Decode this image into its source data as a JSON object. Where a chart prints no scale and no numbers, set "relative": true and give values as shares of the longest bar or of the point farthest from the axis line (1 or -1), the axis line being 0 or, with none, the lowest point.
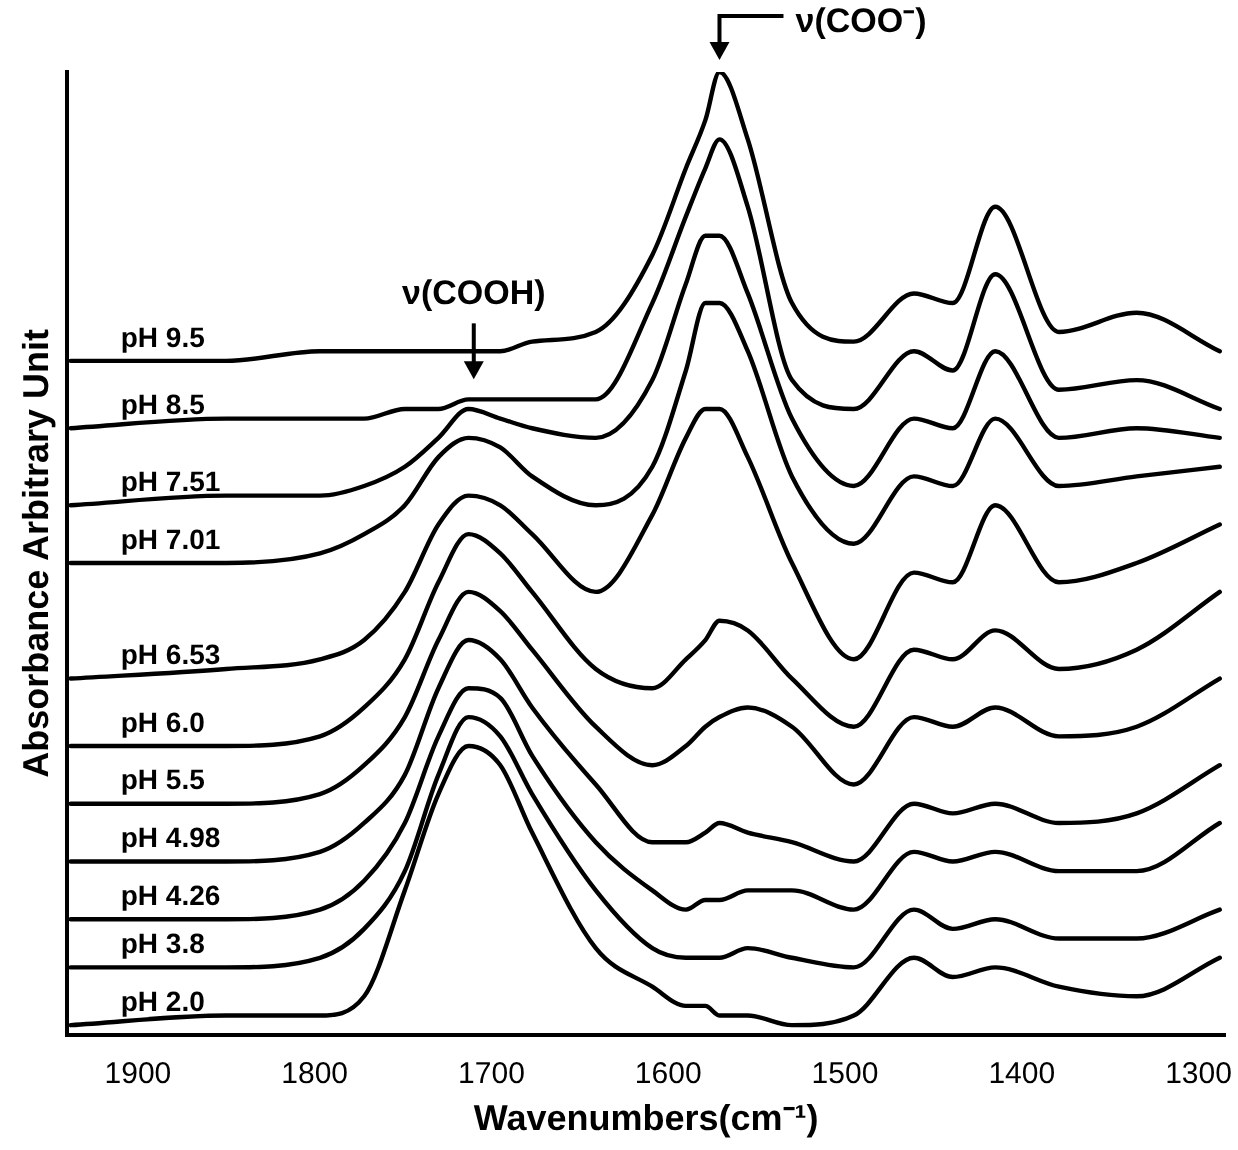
{
  "chart_data": {
    "type": "line",
    "relative": true,
    "xlabel": "Wavenumbers(cm⁻¹)",
    "ylabel": "Absorbance Arbitrary Unit",
    "x": [
      1938,
      1850,
      1797,
      1772,
      1749,
      1730,
      1713,
      1695,
      1677,
      1641,
      1609,
      1590,
      1579,
      1571,
      1555,
      1530,
      1495,
      1461,
      1439,
      1415,
      1379,
      1335,
      1288
    ],
    "xlim": [
      1940,
      1285
    ],
    "xticks": [
      1900,
      1800,
      1700,
      1600,
      1500,
      1400,
      1300
    ],
    "grid": false,
    "legend": false,
    "marker": "none",
    "line_style": "solid",
    "series": [
      {
        "name": "pH 9.5",
        "color": "#000000",
        "values": [
          0.7,
          0.7,
          0.71,
          0.71,
          0.71,
          0.71,
          0.71,
          0.71,
          0.72,
          0.73,
          0.81,
          0.9,
          0.95,
          1,
          0.93,
          0.76,
          0.72,
          0.77,
          0.76,
          0.86,
          0.73,
          0.75,
          0.71
        ]
      },
      {
        "name": "pH 8.5",
        "color": "#000000",
        "values": [
          0.63,
          0.64,
          0.64,
          0.64,
          0.65,
          0.65,
          0.66,
          0.66,
          0.66,
          0.66,
          0.76,
          0.85,
          0.9,
          0.93,
          0.86,
          0.68,
          0.65,
          0.71,
          0.69,
          0.79,
          0.67,
          0.68,
          0.65
        ]
      },
      {
        "name": "pH 7.51",
        "color": "#000000",
        "values": [
          0.55,
          0.56,
          0.56,
          0.57,
          0.59,
          0.62,
          0.65,
          0.64,
          0.63,
          0.62,
          0.68,
          0.78,
          0.83,
          0.83,
          0.77,
          0.64,
          0.57,
          0.64,
          0.63,
          0.71,
          0.62,
          0.63,
          0.62
        ]
      },
      {
        "name": "pH 7.01",
        "color": "#000000",
        "values": [
          0.49,
          0.49,
          0.5,
          0.52,
          0.55,
          0.6,
          0.62,
          0.61,
          0.58,
          0.55,
          0.59,
          0.69,
          0.76,
          0.76,
          0.71,
          0.58,
          0.51,
          0.58,
          0.57,
          0.64,
          0.57,
          0.58,
          0.59
        ]
      },
      {
        "name": "pH 6.53",
        "color": "#000000",
        "values": [
          0.37,
          0.38,
          0.39,
          0.41,
          0.46,
          0.53,
          0.56,
          0.55,
          0.52,
          0.46,
          0.54,
          0.62,
          0.65,
          0.65,
          0.6,
          0.49,
          0.39,
          0.48,
          0.47,
          0.55,
          0.47,
          0.49,
          0.53
        ]
      },
      {
        "name": "pH 6.0",
        "color": "#000000",
        "values": [
          0.3,
          0.3,
          0.31,
          0.34,
          0.39,
          0.47,
          0.52,
          0.5,
          0.46,
          0.38,
          0.36,
          0.39,
          0.41,
          0.43,
          0.42,
          0.37,
          0.32,
          0.4,
          0.39,
          0.42,
          0.38,
          0.4,
          0.46
        ]
      },
      {
        "name": "pH 5.5",
        "color": "#000000",
        "values": [
          0.24,
          0.24,
          0.25,
          0.28,
          0.33,
          0.41,
          0.46,
          0.44,
          0.4,
          0.32,
          0.28,
          0.3,
          0.32,
          0.33,
          0.34,
          0.32,
          0.26,
          0.33,
          0.32,
          0.34,
          0.31,
          0.32,
          0.37
        ]
      },
      {
        "name": "pH 4.98",
        "color": "#000000",
        "values": [
          0.18,
          0.18,
          0.19,
          0.22,
          0.27,
          0.36,
          0.41,
          0.39,
          0.34,
          0.26,
          0.2,
          0.2,
          0.21,
          0.22,
          0.21,
          0.2,
          0.18,
          0.24,
          0.23,
          0.24,
          0.22,
          0.23,
          0.28
        ]
      },
      {
        "name": "pH 4.26",
        "color": "#000000",
        "values": [
          0.12,
          0.12,
          0.13,
          0.16,
          0.22,
          0.31,
          0.36,
          0.35,
          0.29,
          0.2,
          0.15,
          0.13,
          0.14,
          0.14,
          0.15,
          0.15,
          0.13,
          0.19,
          0.18,
          0.19,
          0.17,
          0.17,
          0.22
        ]
      },
      {
        "name": "pH 3.8",
        "color": "#000000",
        "values": [
          0.07,
          0.07,
          0.08,
          0.11,
          0.17,
          0.27,
          0.33,
          0.31,
          0.25,
          0.15,
          0.09,
          0.08,
          0.08,
          0.08,
          0.09,
          0.08,
          0.07,
          0.13,
          0.11,
          0.12,
          0.1,
          0.1,
          0.13
        ]
      },
      {
        "name": "pH 2.0",
        "color": "#000000",
        "values": [
          0.01,
          0.02,
          0.02,
          0.04,
          0.15,
          0.25,
          0.3,
          0.28,
          0.21,
          0.09,
          0.05,
          0.03,
          0.03,
          0.02,
          0.02,
          0.01,
          0.02,
          0.08,
          0.06,
          0.07,
          0.05,
          0.04,
          0.08
        ]
      }
    ],
    "annotations": [
      {
        "text": "ν(COOH)",
        "x": 1710,
        "y": 0.66
      },
      {
        "text": "ν(COO⁻)",
        "x": 1571,
        "y": 1
      }
    ]
  }
}
